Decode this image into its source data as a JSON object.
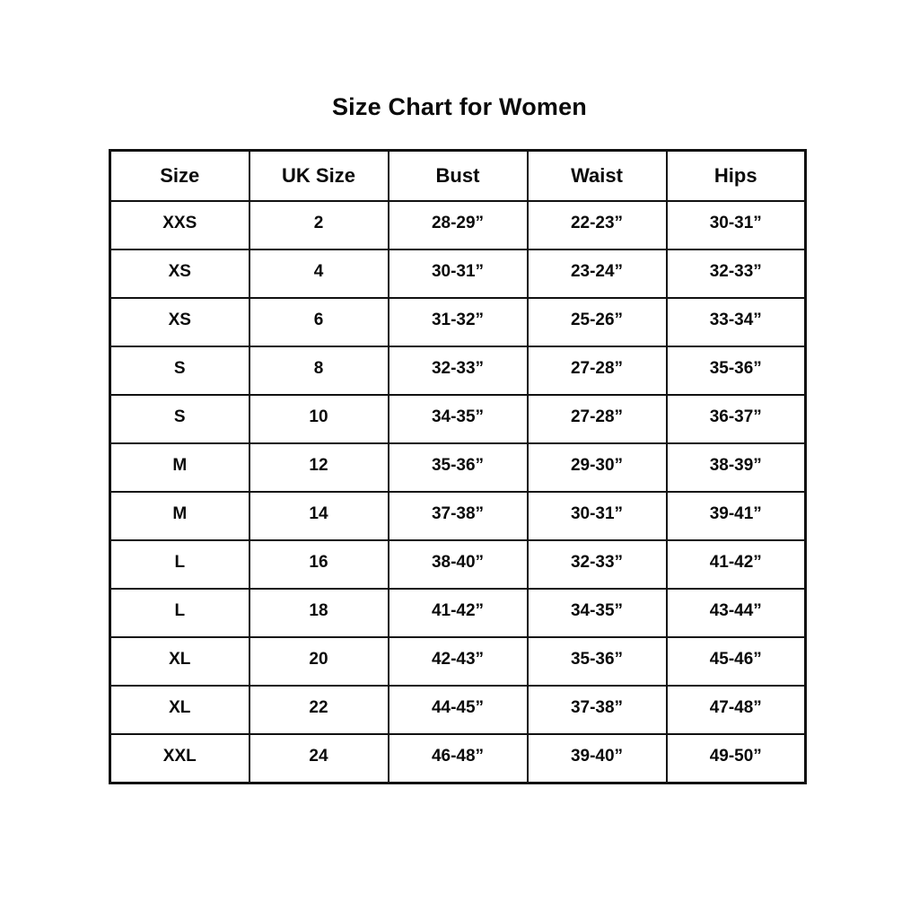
{
  "title": "Size Chart for Women",
  "chart_data": {
    "type": "table",
    "title": "Size Chart for Women",
    "columns": [
      "Size",
      "UK Size",
      "Bust",
      "Waist",
      "Hips"
    ],
    "rows": [
      [
        "XXS",
        "2",
        "28-29”",
        "22-23”",
        "30-31”"
      ],
      [
        "XS",
        "4",
        "30-31”",
        "23-24”",
        "32-33”"
      ],
      [
        "XS",
        "6",
        "31-32”",
        "25-26”",
        "33-34”"
      ],
      [
        "S",
        "8",
        "32-33”",
        "27-28”",
        "35-36”"
      ],
      [
        "S",
        "10",
        "34-35”",
        "27-28”",
        "36-37”"
      ],
      [
        "M",
        "12",
        "35-36”",
        "29-30”",
        "38-39”"
      ],
      [
        "M",
        "14",
        "37-38”",
        "30-31”",
        "39-41”"
      ],
      [
        "L",
        "16",
        "38-40”",
        "32-33”",
        "41-42”"
      ],
      [
        "L",
        "18",
        "41-42”",
        "34-35”",
        "43-44”"
      ],
      [
        "XL",
        "20",
        "42-43”",
        "35-36”",
        "45-46”"
      ],
      [
        "XL",
        "22",
        "44-45”",
        "37-38”",
        "47-48”"
      ],
      [
        "XXL",
        "24",
        "46-48”",
        "39-40”",
        "49-50”"
      ]
    ],
    "layout": {
      "grid": true,
      "border_color": "#111111",
      "background": "#ffffff",
      "text_color": "#0a0a0a",
      "column_width_pct": [
        20,
        20,
        20,
        20,
        20
      ]
    }
  }
}
